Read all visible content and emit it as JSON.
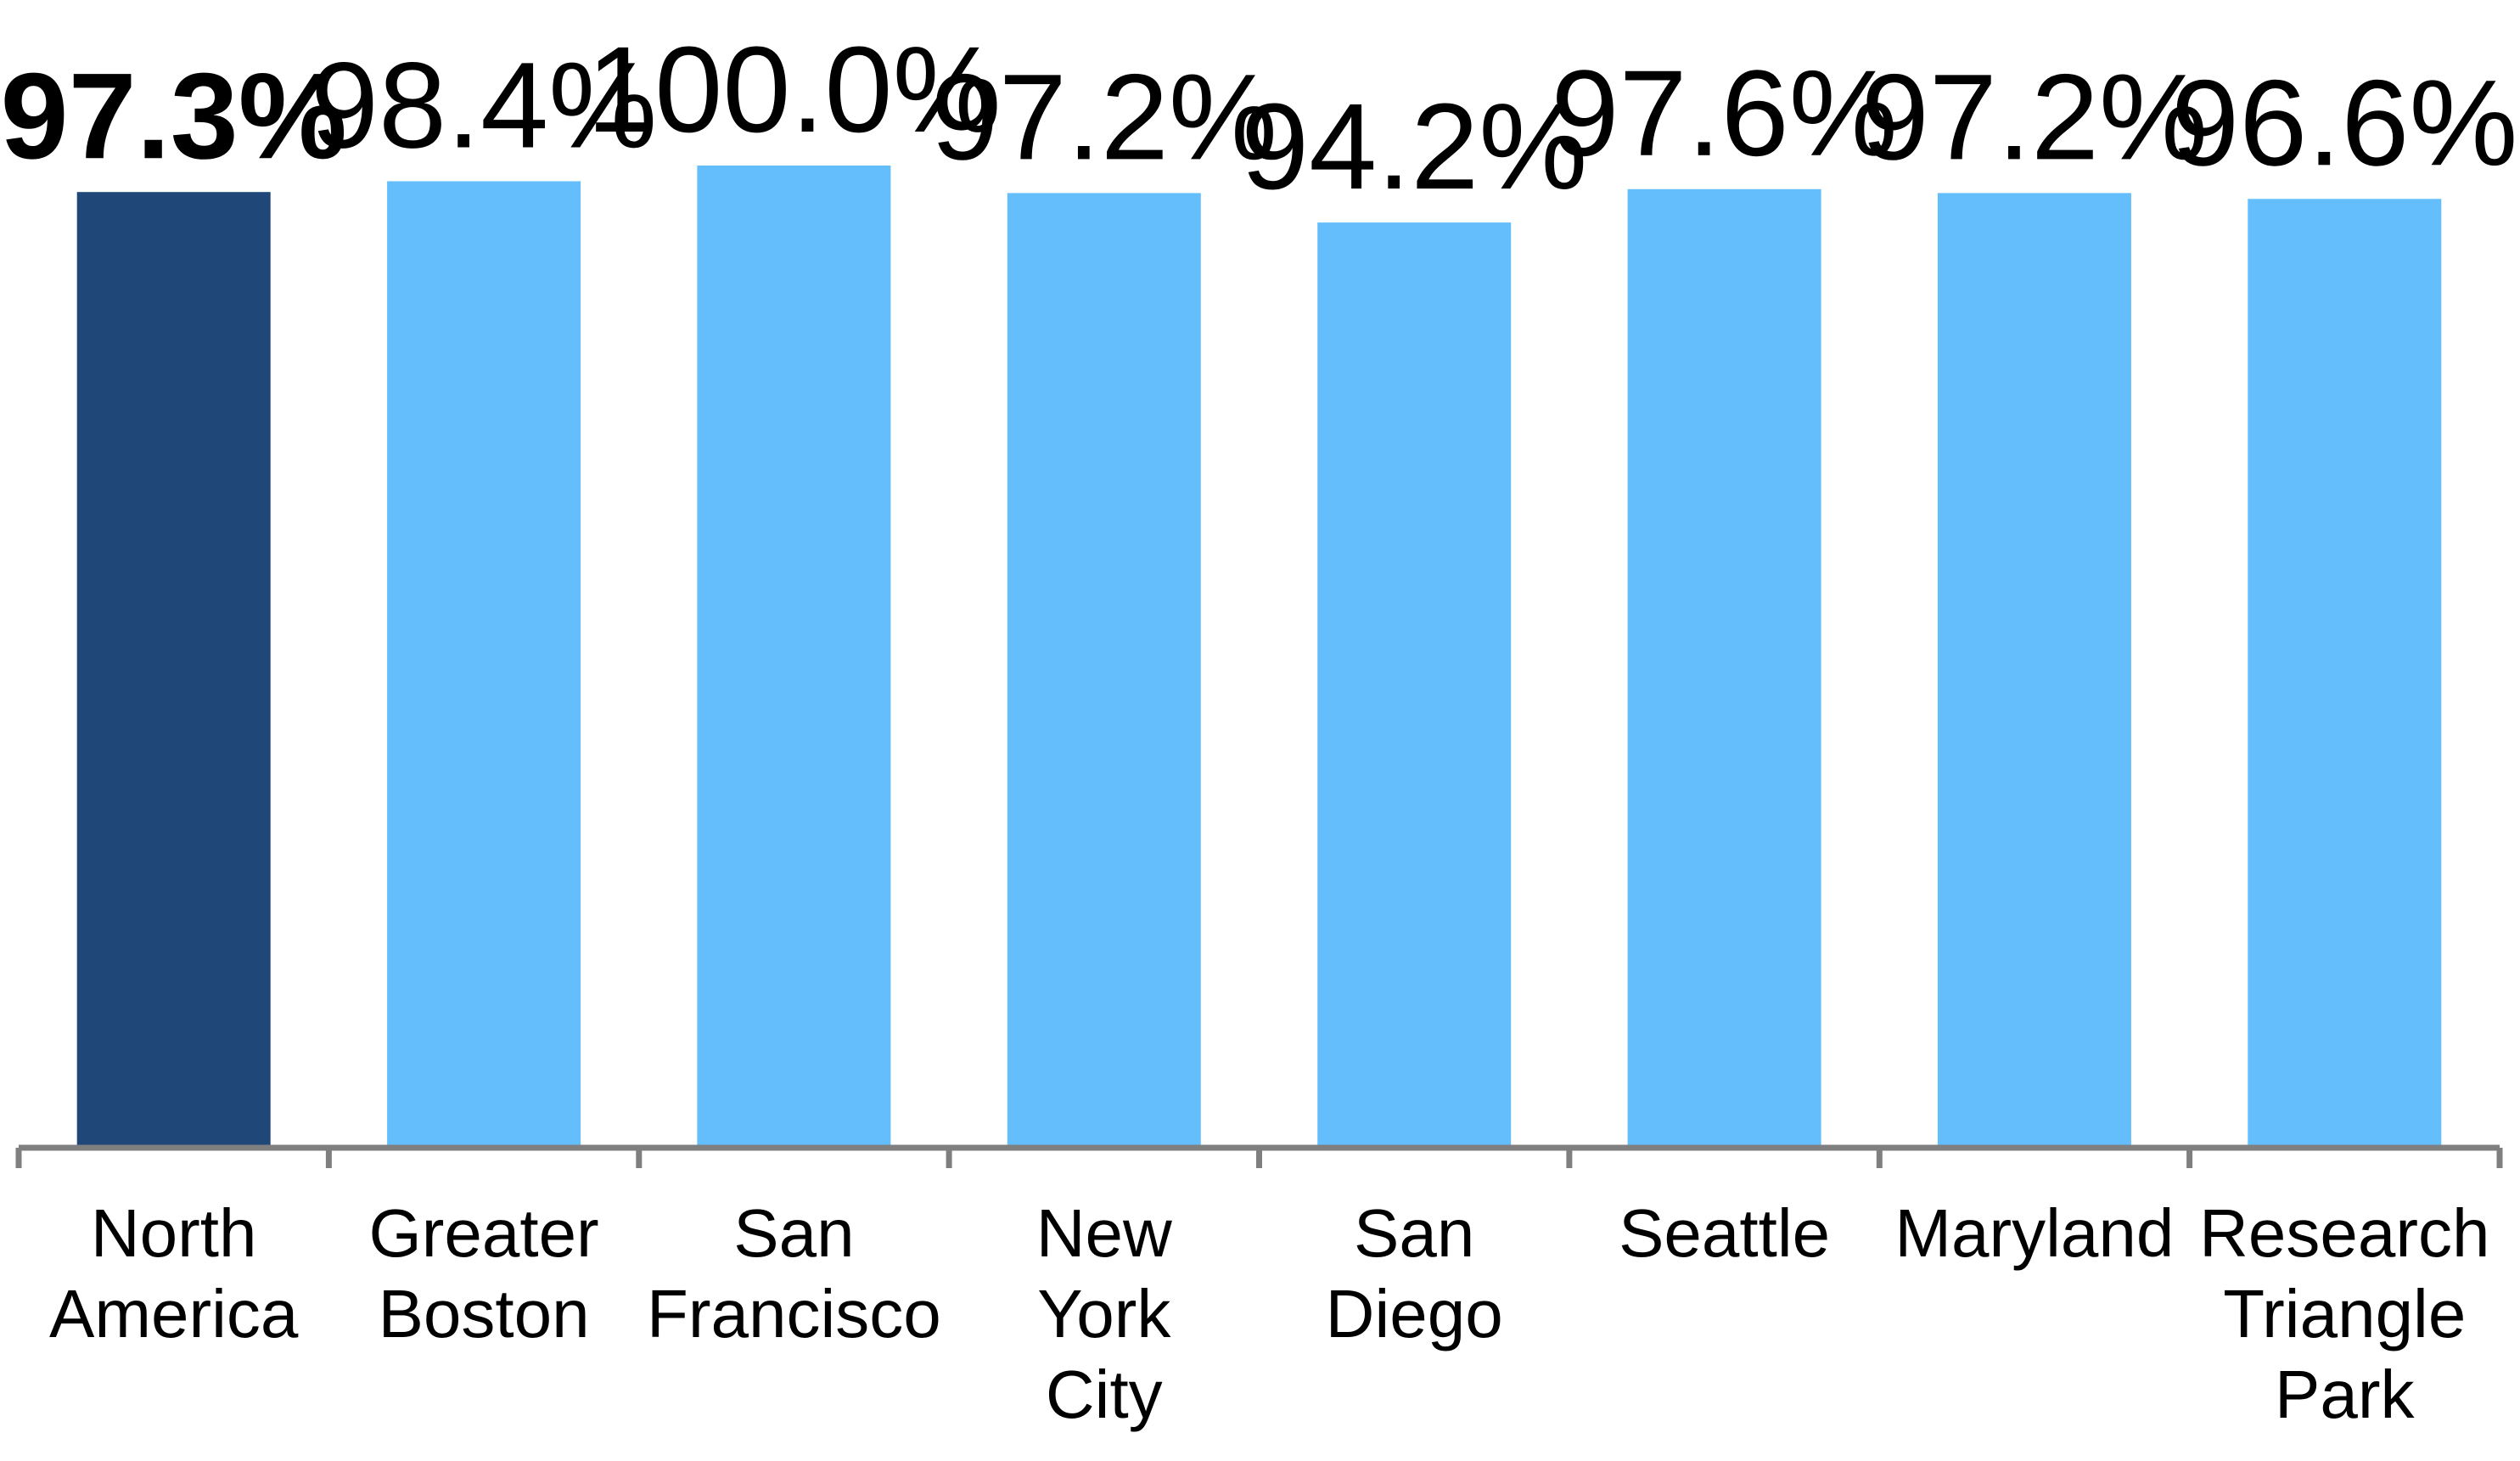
{
  "chart_data": {
    "type": "bar",
    "title": "",
    "xlabel": "",
    "ylabel": "",
    "categories": [
      [
        "North",
        "America"
      ],
      [
        "Greater",
        "Boston"
      ],
      [
        "San",
        "Francisco"
      ],
      [
        "New",
        "York",
        "City"
      ],
      [
        "San",
        "Diego"
      ],
      [
        "Seattle"
      ],
      [
        "Maryland"
      ],
      [
        "Research",
        "Triangle",
        "Park"
      ]
    ],
    "values": [
      97.3,
      98.4,
      100.0,
      97.2,
      94.2,
      97.6,
      97.2,
      96.6
    ],
    "value_labels": [
      "97.3%",
      "98.4%",
      "100.0%",
      "97.2%",
      "94.2%",
      "97.6%",
      "97.2%",
      "96.6%"
    ],
    "highlight_index": 0,
    "ylim": [
      0,
      100
    ],
    "grid": false,
    "legend": "none",
    "colors": {
      "highlight": "#1F4878",
      "bar": "#64BEFC",
      "axis": "#7F7F7F",
      "text": "#000000"
    }
  }
}
